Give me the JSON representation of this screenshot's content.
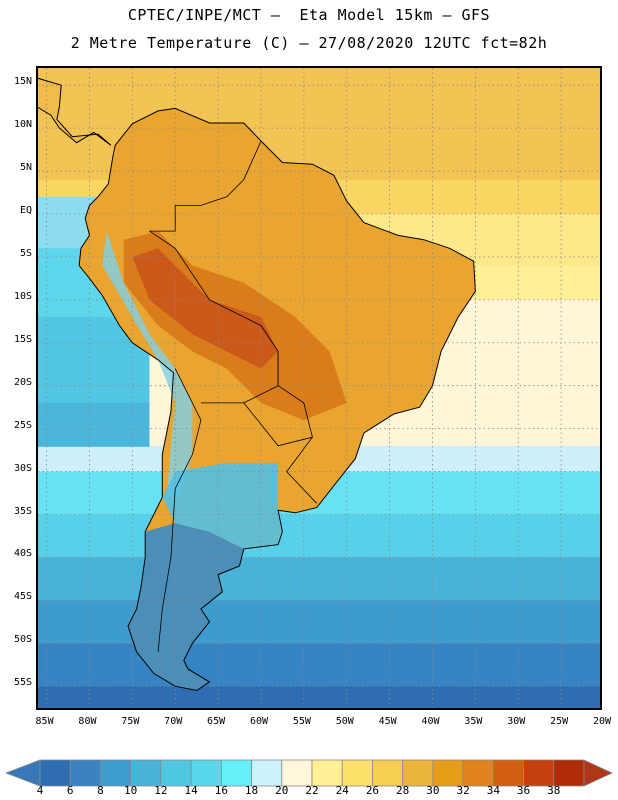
{
  "title": {
    "line1": "CPTEC/INPE/MCT –  Eta Model 15km – GFS",
    "line2": "2 Metre Temperature (C) – 27/08/2020 12UTC fct=82h"
  },
  "map": {
    "lat_labels": [
      "15N",
      "10N",
      "5N",
      "EQ",
      "5S",
      "10S",
      "15S",
      "20S",
      "25S",
      "30S",
      "35S",
      "40S",
      "45S",
      "50S",
      "55S"
    ],
    "lat_values": [
      15,
      10,
      5,
      0,
      -5,
      -10,
      -15,
      -20,
      -25,
      -30,
      -35,
      -40,
      -45,
      -50,
      -55
    ],
    "lon_labels": [
      "85W",
      "80W",
      "75W",
      "70W",
      "65W",
      "60W",
      "55W",
      "50W",
      "45W",
      "40W",
      "35W",
      "30W",
      "25W",
      "20W"
    ],
    "lon_values": [
      -85,
      -80,
      -75,
      -70,
      -65,
      -60,
      -55,
      -50,
      -45,
      -40,
      -35,
      -30,
      -25,
      -20
    ],
    "lat_range": [
      -58,
      17
    ],
    "lon_range": [
      -86,
      -20
    ]
  },
  "colorbar": {
    "labels": [
      "4",
      "6",
      "8",
      "10",
      "12",
      "14",
      "16",
      "18",
      "20",
      "22",
      "24",
      "26",
      "28",
      "30",
      "32",
      "34",
      "36",
      "38"
    ],
    "colors": [
      "#2e6eb0",
      "#3a82c0",
      "#3f9ccf",
      "#48b5d8",
      "#4fc8e0",
      "#58d8ea",
      "#66f0fa",
      "#ccf3fc",
      "#fff6dc",
      "#fff096",
      "#fde26a",
      "#f6cf52",
      "#ecb53c",
      "#e89d1a",
      "#e2821a",
      "#d45e10",
      "#c4400c",
      "#b02c08"
    ],
    "low_color": "#3878b8",
    "high_color": "#b0361a"
  },
  "fields": {
    "ocean_levels": [
      {
        "lat": 16,
        "color": "#f2c453"
      },
      {
        "lat": 4,
        "color": "#f8d661"
      },
      {
        "lat": 0,
        "color": "#fde88a"
      },
      {
        "lat": -6,
        "color": "#fff098"
      },
      {
        "lat": -10,
        "color": "#fff6d8"
      },
      {
        "lat": -27,
        "color": "#cdeefa"
      },
      {
        "lat": -30,
        "color": "#66e2f4"
      },
      {
        "lat": -35,
        "color": "#58d0ea"
      },
      {
        "lat": -40,
        "color": "#48b3d8"
      },
      {
        "lat": -45,
        "color": "#3d9ccd"
      },
      {
        "lat": -50,
        "color": "#3684c3"
      },
      {
        "lat": -55,
        "color": "#2f6db2"
      }
    ],
    "pacific_levels": [
      {
        "lat": 2,
        "color": "#8ddcf0"
      },
      {
        "lat": -4,
        "color": "#5ed6ec"
      },
      {
        "lat": -12,
        "color": "#52c7e4"
      },
      {
        "lat": -22,
        "color": "#4ab6dc"
      }
    ],
    "land_color": "#eaa530",
    "warm_zone_color": "#d87418",
    "hot_zone_color": "#c8541a",
    "andes_color": "#7fd0e8",
    "south_land_color": "#3a8cc8"
  }
}
